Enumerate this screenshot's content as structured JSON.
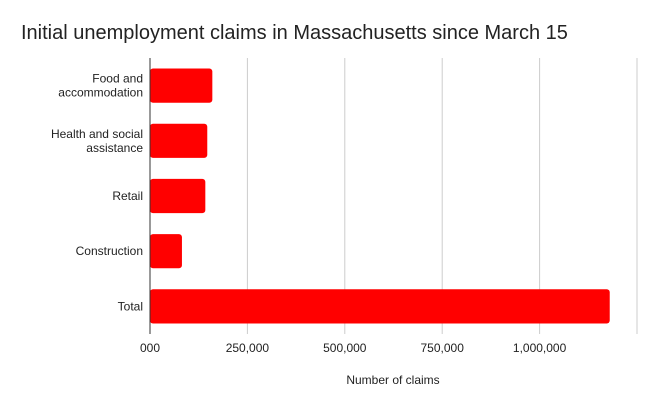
{
  "chart_data": {
    "type": "bar",
    "orientation": "horizontal",
    "title": "Initial unemployment claims in Massachusetts since March 15",
    "xlabel": "Number of claims",
    "ylabel": "",
    "categories": [
      [
        "Food and",
        "accommodation"
      ],
      [
        "Health and social",
        "assistance"
      ],
      [
        "Retail"
      ],
      [
        "Construction"
      ],
      [
        "Total"
      ]
    ],
    "values": [
      160000,
      147000,
      142000,
      82000,
      1180000
    ],
    "xlim": [
      0,
      1250000
    ],
    "x_ticks": [
      0,
      250000,
      500000,
      750000,
      1000000
    ],
    "x_tick_labels": [
      "000",
      "250,000",
      "500,000",
      "750,000",
      "1,000,000"
    ],
    "bar_color": "#ff0000",
    "grid": true
  }
}
